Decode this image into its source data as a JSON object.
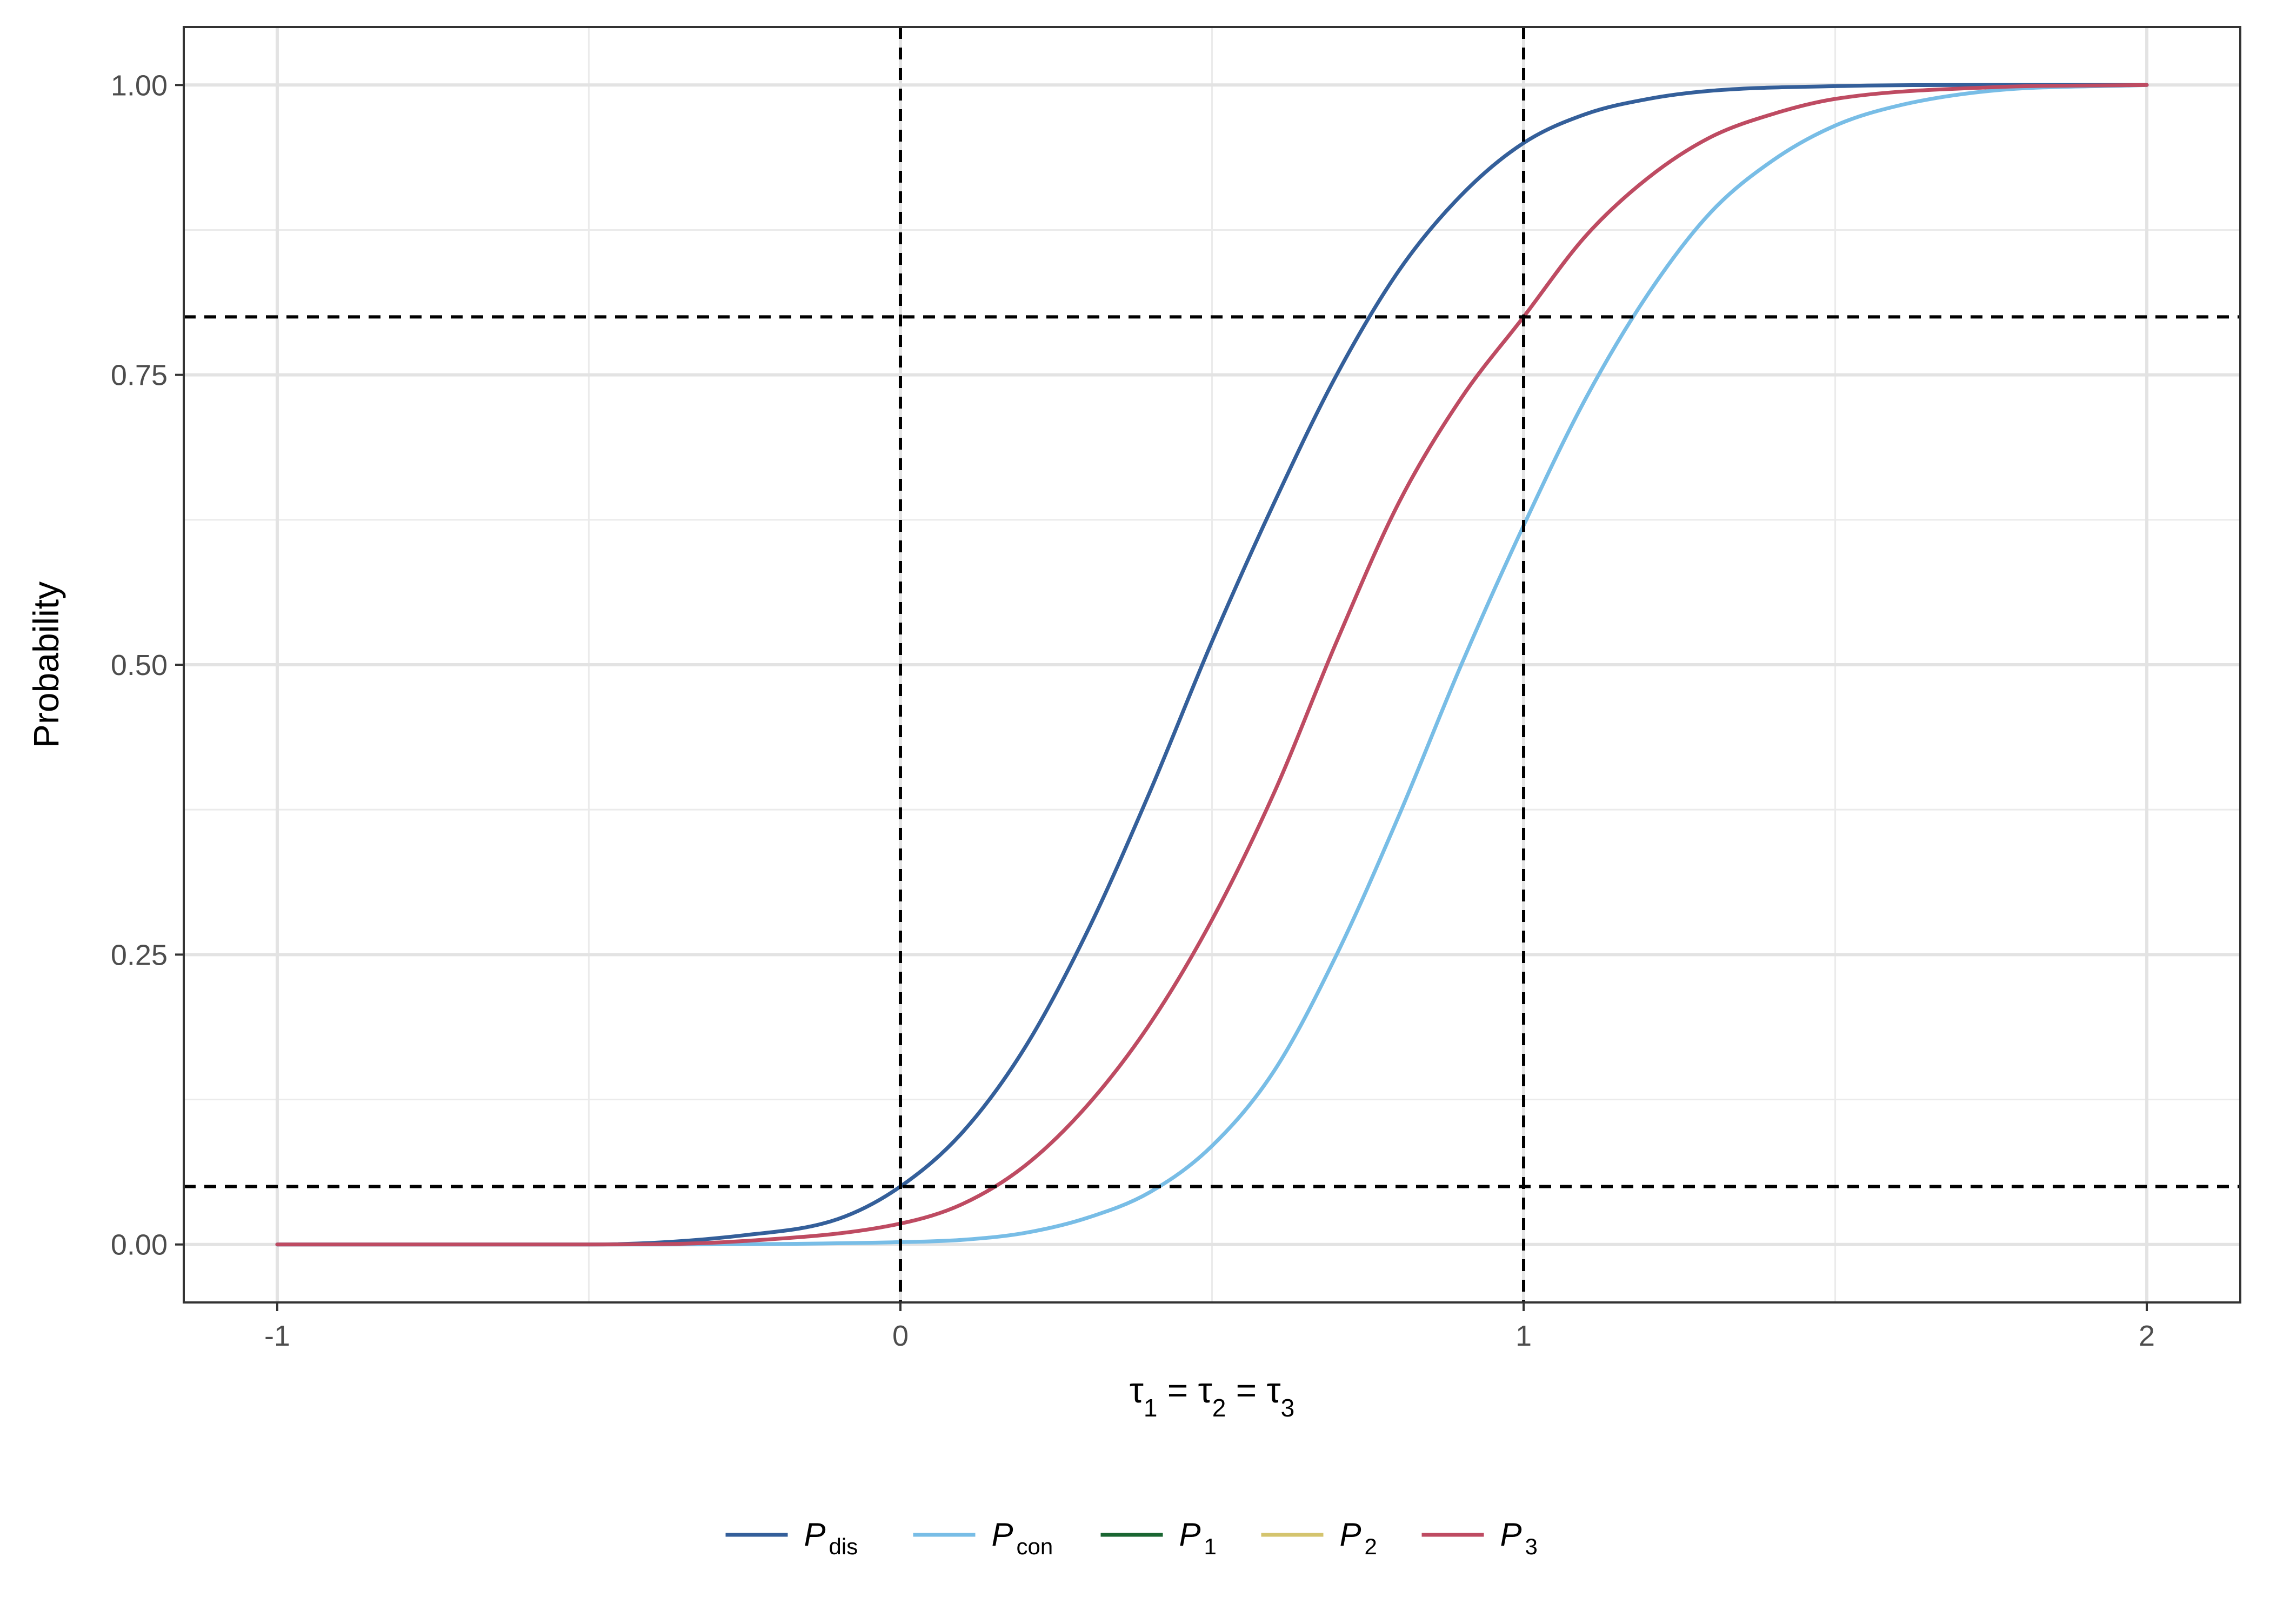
{
  "chart_data": {
    "type": "line",
    "xlabel": {
      "main": "τ",
      "parts": [
        {
          "base": "τ",
          "sub": "1"
        },
        {
          "sep": " = "
        },
        {
          "base": "τ",
          "sub": "2"
        },
        {
          "sep": " = "
        },
        {
          "base": "τ",
          "sub": "3"
        }
      ]
    },
    "ylabel": "Probability",
    "xlim": [
      -1.15,
      2.15
    ],
    "ylim": [
      -0.05,
      1.05
    ],
    "x_ticks": [
      -1,
      0,
      1,
      2
    ],
    "x_tick_labels": [
      "-1",
      "0",
      "1",
      "2"
    ],
    "x_minor_ticks": [
      -0.5,
      0.5,
      1.5
    ],
    "y_ticks": [
      0,
      0.25,
      0.5,
      0.75,
      1
    ],
    "y_tick_labels": [
      "0.00",
      "0.25",
      "0.50",
      "0.75",
      "1.00"
    ],
    "y_minor_ticks": [
      0.125,
      0.375,
      0.625,
      0.875
    ],
    "grid": true,
    "legend_position": "bottom",
    "reference_lines": {
      "vertical": [
        0,
        1
      ],
      "horizontal": [
        0.05,
        0.8
      ]
    },
    "series": [
      {
        "name": "P",
        "sub": "dis",
        "color": "#345F9A",
        "x": [
          -1,
          -0.5,
          -0.25,
          -0.1,
          0,
          0.1,
          0.2,
          0.3,
          0.4,
          0.5,
          0.6,
          0.7,
          0.8,
          0.9,
          1.0,
          1.1,
          1.2,
          1.3,
          1.5,
          1.75,
          2.0
        ],
        "y": [
          0.0,
          0.0,
          0.008,
          0.022,
          0.05,
          0.097,
          0.17,
          0.27,
          0.39,
          0.52,
          0.64,
          0.75,
          0.84,
          0.905,
          0.95,
          0.975,
          0.988,
          0.995,
          0.999,
          1.0,
          1.0
        ]
      },
      {
        "name": "P",
        "sub": "con",
        "color": "#78BDE6",
        "x": [
          -1,
          -0.5,
          0,
          0.1,
          0.2,
          0.3,
          0.4,
          0.5,
          0.6,
          0.7,
          0.8,
          0.9,
          1.0,
          1.1,
          1.2,
          1.3,
          1.4,
          1.5,
          1.6,
          1.75,
          2.0
        ],
        "y": [
          0.0,
          0.0,
          0.002,
          0.004,
          0.01,
          0.023,
          0.045,
          0.085,
          0.15,
          0.25,
          0.37,
          0.5,
          0.62,
          0.73,
          0.82,
          0.89,
          0.935,
          0.965,
          0.982,
          0.995,
          1.0
        ]
      },
      {
        "name": "P",
        "sub": "1",
        "color": "#1A6632",
        "x": [],
        "y": []
      },
      {
        "name": "P",
        "sub": "2",
        "color": "#D4C46E",
        "x": [],
        "y": []
      },
      {
        "name": "P",
        "sub": "3",
        "color": "#BE4B62",
        "x": [
          -1,
          -0.5,
          -0.25,
          0,
          0.1,
          0.2,
          0.3,
          0.4,
          0.5,
          0.6,
          0.7,
          0.8,
          0.9,
          1.0,
          1.1,
          1.2,
          1.3,
          1.4,
          1.5,
          1.75,
          2.0
        ],
        "y": [
          0.0,
          0.0,
          0.003,
          0.018,
          0.035,
          0.068,
          0.12,
          0.19,
          0.28,
          0.39,
          0.52,
          0.64,
          0.73,
          0.8,
          0.87,
          0.92,
          0.955,
          0.975,
          0.988,
          0.998,
          1.0
        ]
      }
    ]
  }
}
